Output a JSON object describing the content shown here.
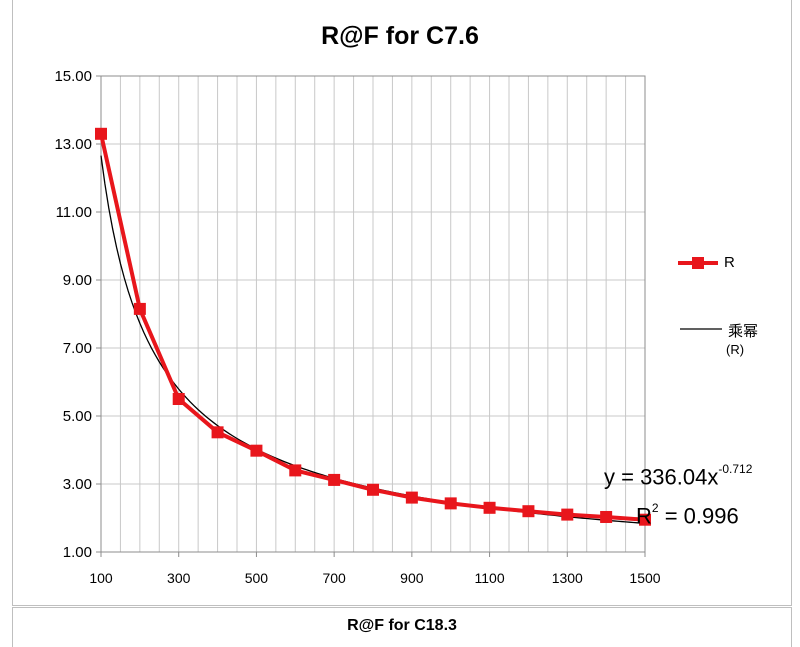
{
  "chart_data": {
    "type": "line",
    "title": "R@F for C7.6",
    "xlabel": "",
    "ylabel": "",
    "x_ticks": [
      "100",
      "300",
      "500",
      "700",
      "900",
      "1100",
      "1300",
      "1500"
    ],
    "y_ticks": [
      "1.00",
      "3.00",
      "5.00",
      "7.00",
      "9.00",
      "11.00",
      "13.00",
      "15.00"
    ],
    "xlim": [
      100,
      1500
    ],
    "ylim": [
      1,
      15
    ],
    "grid": true,
    "legend_position": "right",
    "series": [
      {
        "name": "R",
        "color": "#e8161c",
        "marker": "square",
        "x": [
          100,
          200,
          300,
          400,
          500,
          600,
          700,
          800,
          900,
          1000,
          1100,
          1200,
          1300,
          1400,
          1500
        ],
        "y": [
          13.3,
          8.15,
          5.5,
          4.52,
          3.98,
          3.4,
          3.12,
          2.83,
          2.6,
          2.43,
          2.3,
          2.2,
          2.1,
          2.03,
          1.95
        ]
      },
      {
        "name": "乘幂",
        "name_line2": "(R)",
        "color": "#000000",
        "type": "power-trendline",
        "coefficient": 336.04,
        "exponent": -0.712
      }
    ],
    "annotations": {
      "equation_prefix": "y = 336.04x",
      "equation_exponent": "-0.712",
      "r2_prefix": "R",
      "r2_exponent": "2",
      "r2_suffix": " = 0.996"
    }
  },
  "next_chart_title": "R@F  for C18.3"
}
